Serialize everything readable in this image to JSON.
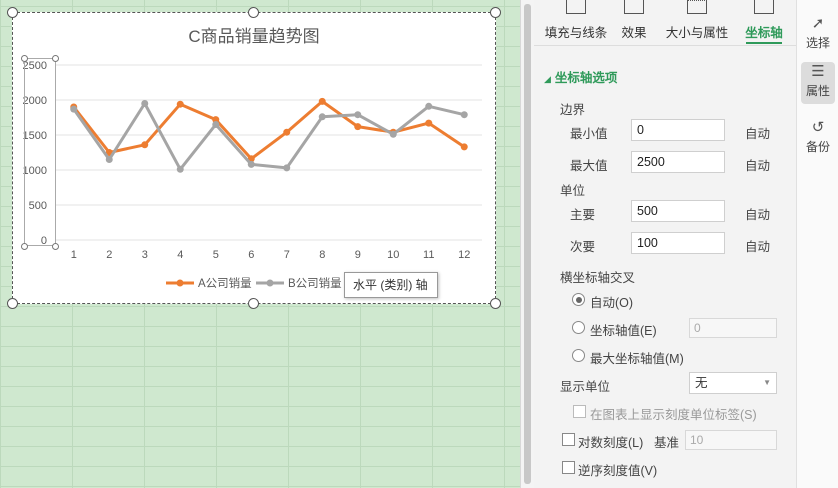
{
  "chart_data": {
    "type": "line",
    "title": "C商品销量趋势图",
    "categories": [
      "1",
      "2",
      "3",
      "4",
      "5",
      "6",
      "7",
      "8",
      "9",
      "10",
      "11",
      "12"
    ],
    "yticks": [
      "2500",
      "2000",
      "1500",
      "1000",
      "500",
      "0"
    ],
    "ylim": [
      0,
      2500
    ],
    "series": [
      {
        "name": "A公司销量",
        "color": "#ed7d31",
        "values": [
          1900,
          1250,
          1360,
          1940,
          1720,
          1160,
          1540,
          1980,
          1620,
          1540,
          1670,
          1330
        ]
      },
      {
        "name": "B公司销量",
        "color": "#a5a5a5",
        "values": [
          1870,
          1150,
          1950,
          1010,
          1650,
          1080,
          1030,
          1760,
          1790,
          1510,
          1910,
          1790
        ]
      }
    ],
    "grid": true,
    "legend": "bottom"
  },
  "tooltip": "水平 (类别) 轴",
  "panel": {
    "tabs": [
      "填充与线条",
      "效果",
      "大小与属性",
      "坐标轴"
    ],
    "section": "坐标轴选项",
    "bounds_label": "边界",
    "min_label": "最小值",
    "min_value": "0",
    "max_label": "最大值",
    "max_value": "2500",
    "auto": "自动",
    "units_label": "单位",
    "major_label": "主要",
    "major_value": "500",
    "minor_label": "次要",
    "minor_value": "100",
    "cross_label": "横坐标轴交叉",
    "cross_auto": "自动(O)",
    "cross_value": "坐标轴值(E)",
    "cross_value_input": "0",
    "cross_max": "最大坐标轴值(M)",
    "display_units_label": "显示单位",
    "display_units_value": "无",
    "show_units_label": "在图表上显示刻度单位标签(S)",
    "log_scale": "对数刻度(L)",
    "base_label": "基准",
    "base_value": "10",
    "reverse": "逆序刻度值(V)"
  },
  "rail": {
    "select": "选择",
    "properties": "属性",
    "backup": "备份"
  }
}
